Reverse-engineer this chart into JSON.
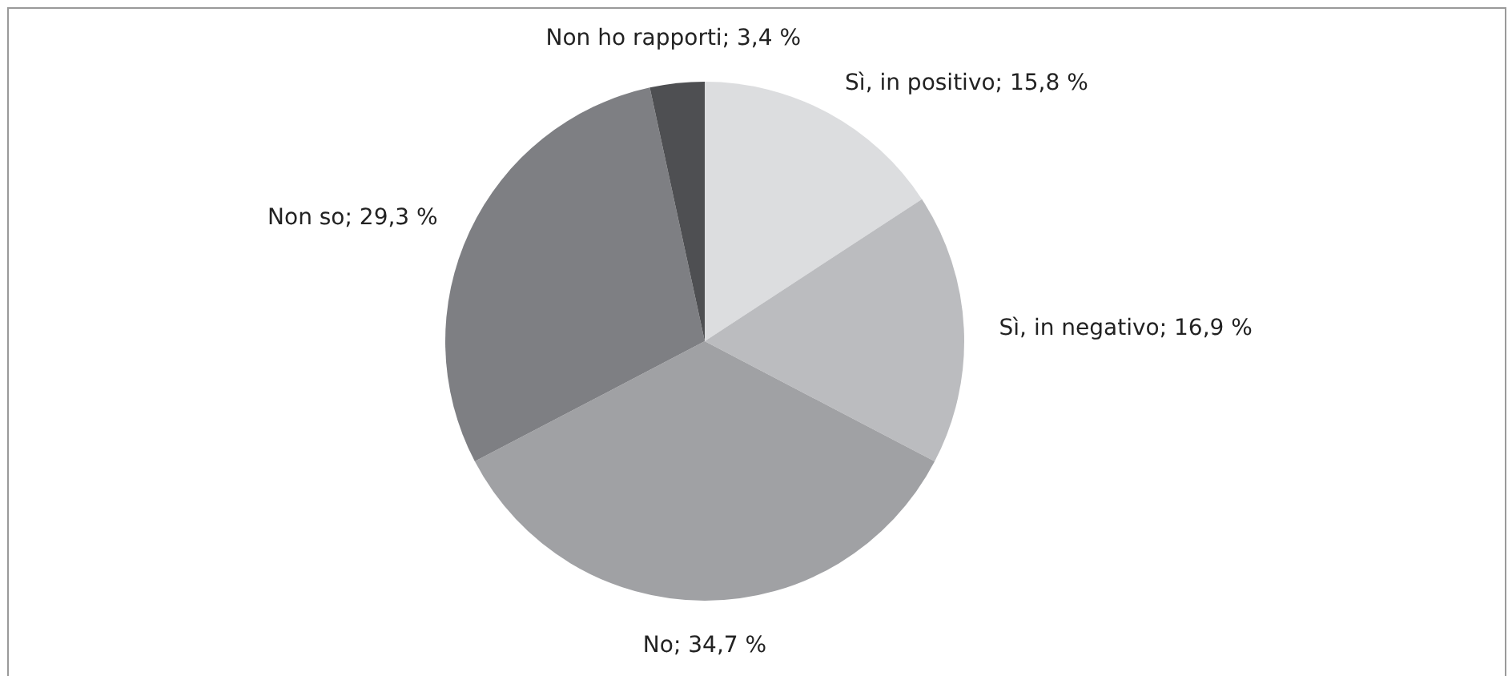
{
  "chart_data": {
    "type": "pie",
    "categories": [
      "Sì, in positivo",
      "Sì, in negativo",
      "No",
      "Non so",
      "Non ho rapporti"
    ],
    "values": [
      15.8,
      16.9,
      34.7,
      29.3,
      3.4
    ],
    "value_labels": [
      "15,8 %",
      "16,9 %",
      "34,7 %",
      "29,3 %",
      "3,4 %"
    ],
    "colors": [
      "#dcdddf",
      "#bbbcbf",
      "#a0a1a4",
      "#7e7f83",
      "#4e4f52"
    ]
  }
}
